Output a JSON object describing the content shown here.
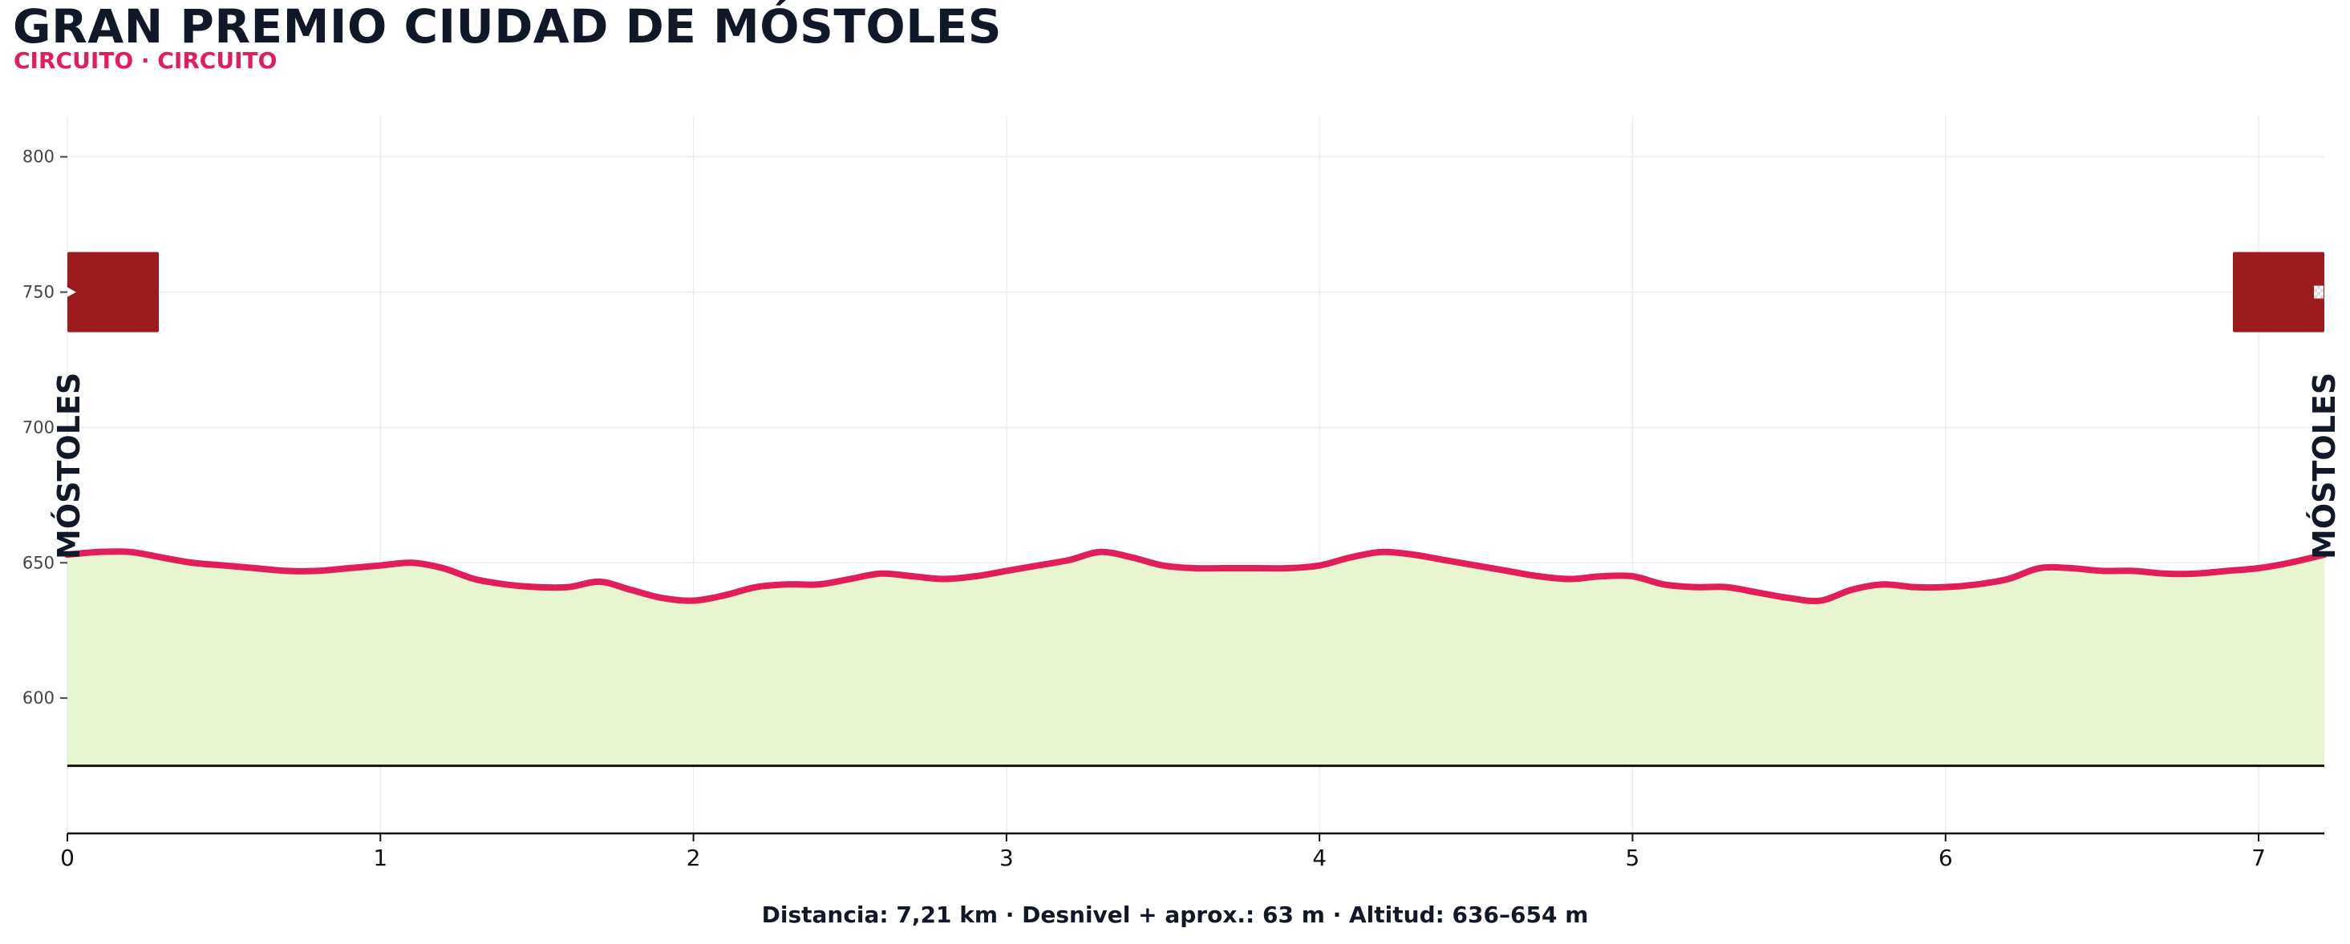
{
  "header": {
    "title": "GRAN PREMIO CIUDAD DE MÓSTOLES",
    "subtitle": "CIRCUITO · CIRCUITO"
  },
  "footer": {
    "summary": "Distancia: 7,21 km · Desnivel + aprox.: 63 m · Altitud: 636–654 m"
  },
  "colors": {
    "line": "#e11d5a",
    "fill": "#e7f5d0",
    "marker": "#9b1b1f",
    "title": "#111827",
    "grid": "#ececec"
  },
  "chart_data": {
    "type": "area",
    "title": "GRAN PREMIO CIUDAD DE MÓSTOLES",
    "subtitle": "CIRCUITO · CIRCUITO",
    "xlabel": "",
    "ylabel": "",
    "xlim": [
      0,
      7.21
    ],
    "ylim": [
      550,
      815
    ],
    "baseline": 575,
    "grid": true,
    "x_ticks": [
      0,
      1,
      2,
      3,
      4,
      5,
      6,
      7
    ],
    "y_ticks": [
      600,
      650,
      700,
      750,
      800
    ],
    "series": [
      {
        "x": [
          0,
          0.1,
          0.2,
          0.3,
          0.4,
          0.5,
          0.6,
          0.7,
          0.8,
          0.9,
          1.0,
          1.1,
          1.2,
          1.3,
          1.4,
          1.5,
          1.6,
          1.7,
          1.8,
          1.9,
          2.0,
          2.1,
          2.2,
          2.3,
          2.4,
          2.5,
          2.6,
          2.7,
          2.8,
          2.9,
          3.0,
          3.1,
          3.2,
          3.3,
          3.4,
          3.5,
          3.6,
          3.7,
          3.8,
          3.9,
          4.0,
          4.1,
          4.2,
          4.3,
          4.4,
          4.5,
          4.6,
          4.7,
          4.8,
          4.9,
          5.0,
          5.1,
          5.2,
          5.3,
          5.4,
          5.5,
          5.6,
          5.7,
          5.8,
          5.9,
          6.0,
          6.1,
          6.2,
          6.3,
          6.4,
          6.5,
          6.6,
          6.7,
          6.8,
          6.9,
          7.0,
          7.1,
          7.21
        ],
        "values": [
          653,
          654,
          654,
          652,
          650,
          649,
          648,
          647,
          647,
          648,
          649,
          650,
          648,
          644,
          642,
          641,
          641,
          643,
          640,
          637,
          636,
          638,
          641,
          642,
          642,
          644,
          646,
          645,
          644,
          645,
          647,
          649,
          651,
          654,
          652,
          649,
          648,
          648,
          648,
          648,
          649,
          652,
          654,
          653,
          651,
          649,
          647,
          645,
          644,
          645,
          645,
          642,
          641,
          641,
          639,
          637,
          636,
          640,
          642,
          641,
          641,
          642,
          644,
          648,
          648,
          647,
          647,
          646,
          646,
          647,
          648,
          650,
          653
        ]
      }
    ],
    "markers": [
      {
        "label": "MÓSTOLES",
        "x": 0,
        "icon": "start-flag-icon"
      },
      {
        "label": "MÓSTOLES",
        "x": 7.21,
        "icon": "finish-flag-icon"
      }
    ],
    "marker_y": 750
  }
}
